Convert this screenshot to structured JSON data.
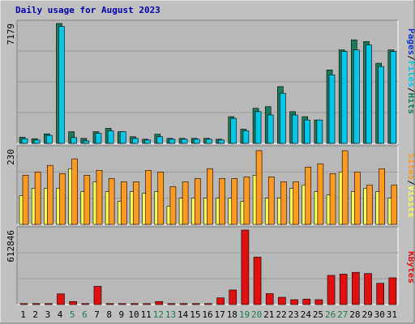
{
  "colors": {
    "background": "#c0c0c0",
    "plot_background": "#b8b8b8",
    "frame_dark": "#808080",
    "frame_light": "#ffffff",
    "gridline": "#9a9a9a",
    "title": "#0000aa",
    "weekday_label": "#000000",
    "weekend_label": "#1a7a4a",
    "hits": "#1a7a5a",
    "files": "#00c8e8",
    "pages": "#1133cc",
    "visits": "#ffff55",
    "sites": "#ff9922",
    "kbytes": "#e01010"
  },
  "chart_data": [
    {
      "type": "bar",
      "title": "Daily usage for August 2023",
      "categories": [
        "1",
        "2",
        "3",
        "4",
        "5",
        "6",
        "7",
        "8",
        "9",
        "10",
        "11",
        "12",
        "13",
        "14",
        "15",
        "16",
        "17",
        "18",
        "19",
        "20",
        "21",
        "22",
        "23",
        "24",
        "25",
        "26",
        "27",
        "28",
        "29",
        "30",
        "31"
      ],
      "weekend_days": [
        "5",
        "6",
        "12",
        "13",
        "19",
        "20",
        "26",
        "27"
      ],
      "ymax_label": "7179",
      "ylim": [
        0,
        7179
      ],
      "legend": [
        {
          "name": "Pages",
          "color": "#1133cc"
        },
        {
          "name": "Files",
          "color": "#00c8e8"
        },
        {
          "name": "Hits",
          "color": "#1a7a5a"
        }
      ],
      "series": [
        {
          "name": "Hits",
          "values": [
            370,
            280,
            570,
            7179,
            700,
            300,
            700,
            900,
            700,
            400,
            250,
            550,
            300,
            300,
            300,
            300,
            250,
            1600,
            850,
            2100,
            2200,
            3400,
            1900,
            1600,
            1400,
            4400,
            5600,
            6200,
            6100,
            4800,
            5600
          ]
        },
        {
          "name": "Files",
          "values": [
            280,
            200,
            480,
            7000,
            350,
            150,
            600,
            750,
            700,
            300,
            200,
            400,
            250,
            250,
            250,
            250,
            200,
            1500,
            750,
            1900,
            1700,
            3000,
            1700,
            1400,
            1400,
            4100,
            5500,
            5600,
            5900,
            4600,
            5500
          ]
        },
        {
          "name": "Pages",
          "values": [
            0,
            0,
            0,
            0,
            0,
            0,
            0,
            0,
            0,
            0,
            0,
            0,
            0,
            0,
            0,
            0,
            0,
            0,
            0,
            0,
            0,
            0,
            0,
            0,
            0,
            0,
            0,
            0,
            0,
            0,
            0
          ]
        }
      ]
    },
    {
      "type": "bar",
      "categories": [
        "1",
        "2",
        "3",
        "4",
        "5",
        "6",
        "7",
        "8",
        "9",
        "10",
        "11",
        "12",
        "13",
        "14",
        "15",
        "16",
        "17",
        "18",
        "19",
        "20",
        "21",
        "22",
        "23",
        "24",
        "25",
        "26",
        "27",
        "28",
        "29",
        "30",
        "31"
      ],
      "ymax_label": "230",
      "ylim": [
        0,
        230
      ],
      "legend": [
        {
          "name": "Sites",
          "color": "#ff9922"
        },
        {
          "name": "Visits",
          "color": "#ffff55"
        }
      ],
      "series": [
        {
          "name": "Visits",
          "values": [
            88,
            110,
            110,
            110,
            170,
            100,
            130,
            100,
            70,
            100,
            95,
            100,
            55,
            80,
            80,
            80,
            80,
            80,
            70,
            150,
            80,
            80,
            110,
            120,
            100,
            90,
            160,
            100,
            110,
            100,
            80
          ]
        },
        {
          "name": "Sites",
          "values": [
            150,
            160,
            180,
            155,
            200,
            150,
            165,
            140,
            130,
            130,
            165,
            160,
            115,
            130,
            140,
            170,
            140,
            140,
            145,
            225,
            145,
            130,
            130,
            175,
            185,
            155,
            225,
            160,
            120,
            170,
            120
          ]
        }
      ]
    },
    {
      "type": "bar",
      "categories": [
        "1",
        "2",
        "3",
        "4",
        "5",
        "6",
        "7",
        "8",
        "9",
        "10",
        "11",
        "12",
        "13",
        "14",
        "15",
        "16",
        "17",
        "18",
        "19",
        "20",
        "21",
        "22",
        "23",
        "24",
        "25",
        "26",
        "27",
        "28",
        "29",
        "30",
        "31"
      ],
      "ymax_label": "612846",
      "ylim": [
        0,
        612846
      ],
      "legend": [
        {
          "name": "KBytes",
          "color": "#e01010"
        }
      ],
      "series": [
        {
          "name": "KBytes",
          "values": [
            8000,
            8000,
            8000,
            88000,
            25000,
            8000,
            150000,
            8000,
            8000,
            8000,
            8000,
            25000,
            8000,
            8000,
            8000,
            8000,
            55000,
            120000,
            612846,
            390000,
            90000,
            60000,
            40000,
            45000,
            40000,
            240000,
            250000,
            265000,
            255000,
            175000,
            220000
          ]
        }
      ]
    }
  ]
}
